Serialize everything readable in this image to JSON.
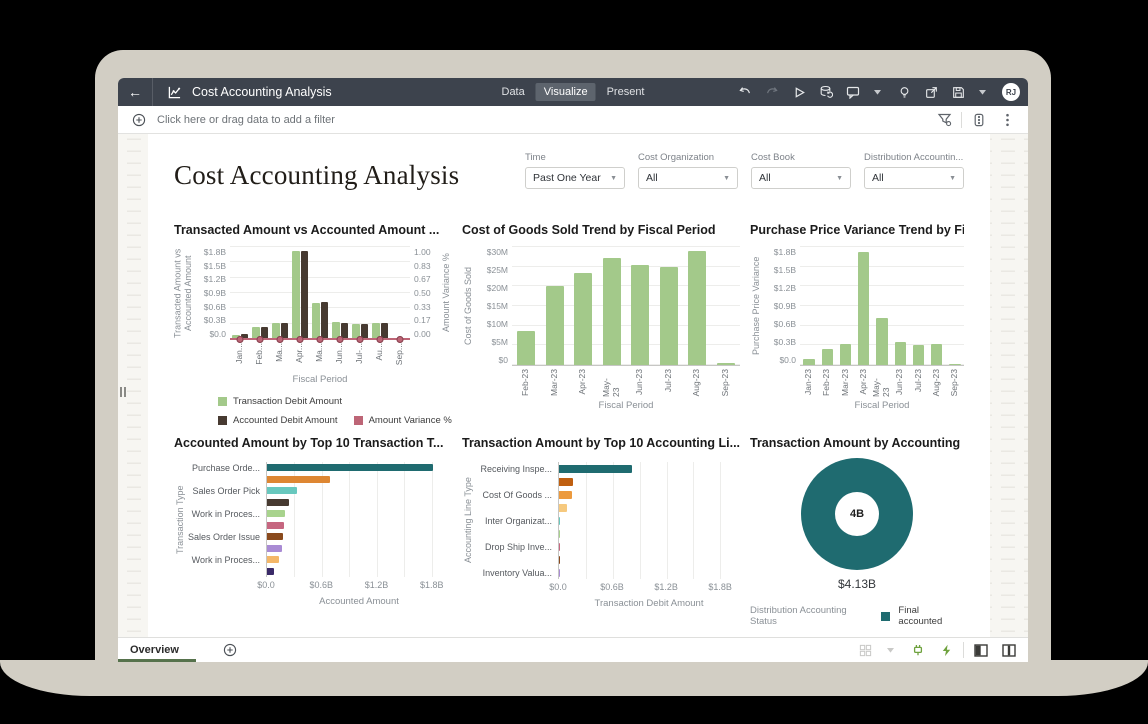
{
  "topbar": {
    "title": "Cost Accounting Analysis",
    "tabs": [
      {
        "label": "Data",
        "active": false
      },
      {
        "label": "Visualize",
        "active": true
      },
      {
        "label": "Present",
        "active": false
      }
    ],
    "back_icon": "←",
    "icons": [
      "chart-logo",
      "undo",
      "redo",
      "run",
      "refresh-data",
      "comments",
      "insights",
      "export",
      "save"
    ],
    "avatar_initials": "RJ"
  },
  "filterbar": {
    "add_filter_text": "Click here or drag data to add a filter",
    "icons": [
      "add-filter",
      "filter",
      "data-settings",
      "more-options"
    ]
  },
  "sheet": {
    "title": "Cost Accounting Analysis",
    "filters": [
      {
        "label": "Time",
        "value": "Past One Year"
      },
      {
        "label": "Cost Organization",
        "value": "All"
      },
      {
        "label": "Cost Book",
        "value": "All"
      },
      {
        "label": "Distribution Accountin...",
        "value": "All"
      }
    ]
  },
  "bottombar": {
    "tab_label": "Overview",
    "icons": [
      "add-canvas",
      "grid-view",
      "touch",
      "auto-refresh",
      "layout-left",
      "layout-center"
    ]
  },
  "colors": {
    "topbar_bg": "#3d434d",
    "accent_teal": "#1f6b70",
    "green_bar": "#a3c98a",
    "dark_brown": "#473a31",
    "rose": "#bd6576",
    "tab_underline_green": "#56724c",
    "frame_beige": "#d2cec4"
  },
  "chart_data": [
    {
      "type": "bar",
      "subtype": "combo-dual-axis",
      "title": "Transacted Amount vs Accounted Amount ...",
      "categories": [
        "Jan...",
        "Feb...",
        "Ma...",
        "Apr...",
        "Ma...",
        "Jun...",
        "Jul-...",
        "Au...",
        "Sep..."
      ],
      "series": [
        {
          "name": "Transaction Debit Amount",
          "type": "bar",
          "color": "#a3c98a",
          "values": [
            0.08,
            0.24,
            0.31,
            1.72,
            0.71,
            0.34,
            0.3,
            0.31,
            0.0
          ]
        },
        {
          "name": "Accounted Debit Amount",
          "type": "bar",
          "color": "#473a31",
          "values": [
            0.1,
            0.24,
            0.32,
            1.73,
            0.72,
            0.31,
            0.3,
            0.32,
            0.0
          ]
        },
        {
          "name": "Amount Variance %",
          "type": "line",
          "axis": "right",
          "color": "#bd6576",
          "values": [
            0,
            0,
            0,
            0,
            0,
            0,
            0,
            0,
            0
          ]
        }
      ],
      "xlabel": "Fiscal Period",
      "ylabel": "Transacted Amount vs Accounted Amount",
      "y2label": "Amount Variance %",
      "yticks": [
        "$1.8B",
        "$1.5B",
        "$1.2B",
        "$0.9B",
        "$0.6B",
        "$0.3B",
        "$0.0"
      ],
      "y2ticks": [
        "1.00",
        "0.83",
        "0.67",
        "0.50",
        "0.33",
        "0.17",
        "0.00"
      ],
      "ylim": [
        0,
        1.8
      ],
      "y2lim": [
        0,
        1.0
      ],
      "grid": true,
      "legend_position": "bottom"
    },
    {
      "type": "bar",
      "title": "Cost of Goods Sold Trend by Fiscal Period",
      "categories": [
        "Feb-23",
        "Mar-23",
        "Apr-23",
        "May-23",
        "Jun-23",
        "Jul-23",
        "Aug-23",
        "Sep-23"
      ],
      "values": [
        8.6,
        20.2,
        23.4,
        27.1,
        25.4,
        24.8,
        28.9,
        0.4
      ],
      "color": "#a3c98a",
      "xlabel": "Fiscal Period",
      "ylabel": "Cost of Goods Sold",
      "yticks": [
        "$30M",
        "$25M",
        "$20M",
        "$15M",
        "$10M",
        "$5M",
        "$0"
      ],
      "ylim": [
        0,
        30
      ],
      "grid": true
    },
    {
      "type": "bar",
      "title": "Purchase Price Variance Trend by Fiscal...",
      "categories": [
        "Jan-23",
        "Feb-23",
        "Mar-23",
        "Apr-23",
        "May-23",
        "Jun-23",
        "Jul-23",
        "Aug-23",
        "Sep-23"
      ],
      "values": [
        0.09,
        0.24,
        0.32,
        1.73,
        0.72,
        0.35,
        0.31,
        0.32,
        0.01
      ],
      "color": "#a3c98a",
      "xlabel": "Fiscal Period",
      "ylabel": "Purchase Price Variance",
      "yticks": [
        "$1.8B",
        "$1.5B",
        "$1.2B",
        "$0.9B",
        "$0.6B",
        "$0.3B",
        "$0.0"
      ],
      "ylim": [
        0,
        1.8
      ],
      "grid": true
    },
    {
      "type": "hbar",
      "title": "Accounted Amount by Top 10 Transaction T...",
      "xlabel": "Accounted Amount",
      "ylabel": "Transaction Type",
      "xticks": [
        "$0.0",
        "$0.6B",
        "$1.2B",
        "$1.8B"
      ],
      "xtick_vals": [
        0,
        0.6,
        1.2,
        1.8
      ],
      "xlim": [
        0,
        2.02
      ],
      "grid_step": 0.3,
      "bars": [
        {
          "label": "Purchase Orde...",
          "value": 1.81,
          "color": "#1f6b70"
        },
        {
          "label": "",
          "value": 0.69,
          "color": "#de8733"
        },
        {
          "label": "Sales Order Pick",
          "value": 0.33,
          "color": "#68c8be"
        },
        {
          "label": "",
          "value": 0.24,
          "color": "#473a31"
        },
        {
          "label": "Work in Proces...",
          "value": 0.2,
          "color": "#a8d38d"
        },
        {
          "label": "",
          "value": 0.19,
          "color": "#c66680"
        },
        {
          "label": "Sales Order Issue",
          "value": 0.17,
          "color": "#8a4a1d"
        },
        {
          "label": "",
          "value": 0.16,
          "color": "#a98bd4"
        },
        {
          "label": "Work in Proces...",
          "value": 0.13,
          "color": "#f4b768"
        },
        {
          "label": "",
          "value": 0.08,
          "color": "#3a2a68"
        }
      ]
    },
    {
      "type": "hbar",
      "title": "Transaction Amount by Top 10 Accounting Li...",
      "xlabel": "Transaction Debit Amount",
      "ylabel": "Accounting Line Type",
      "xticks": [
        "$0.0",
        "$0.6B",
        "$1.2B",
        "$1.8B"
      ],
      "xtick_vals": [
        0,
        0.6,
        1.2,
        1.8
      ],
      "xlim": [
        0,
        2.02
      ],
      "grid_step": 0.3,
      "bars": [
        {
          "label": "Receiving Inspe...",
          "value": 0.82,
          "color": "#1f6b70"
        },
        {
          "label": "",
          "value": 0.155,
          "color": "#bf5f10"
        },
        {
          "label": "Cost Of Goods ...",
          "value": 0.15,
          "color": "#ec9a3e"
        },
        {
          "label": "",
          "value": 0.09,
          "color": "#f6c97e"
        },
        {
          "label": "Inter Organizat...",
          "value": 0.012,
          "color": "#68c8be"
        },
        {
          "label": "",
          "value": 0.004,
          "color": "#a8d38d"
        },
        {
          "label": "Drop Ship Inve...",
          "value": 0.003,
          "color": "#c66680"
        },
        {
          "label": "",
          "value": 0.002,
          "color": "#8a4a1d"
        },
        {
          "label": "Inventory Valua...",
          "value": 0.002,
          "color": "#a98bd4"
        }
      ]
    },
    {
      "type": "donut",
      "title": "Transaction Amount by Accounting ...",
      "center_label": "4B",
      "total_label": "$4.13B",
      "legend_title": "Distribution Accounting Status",
      "segments": [
        {
          "label": "Final accounted",
          "value": 4.13,
          "color": "#1f6b70"
        }
      ]
    }
  ]
}
